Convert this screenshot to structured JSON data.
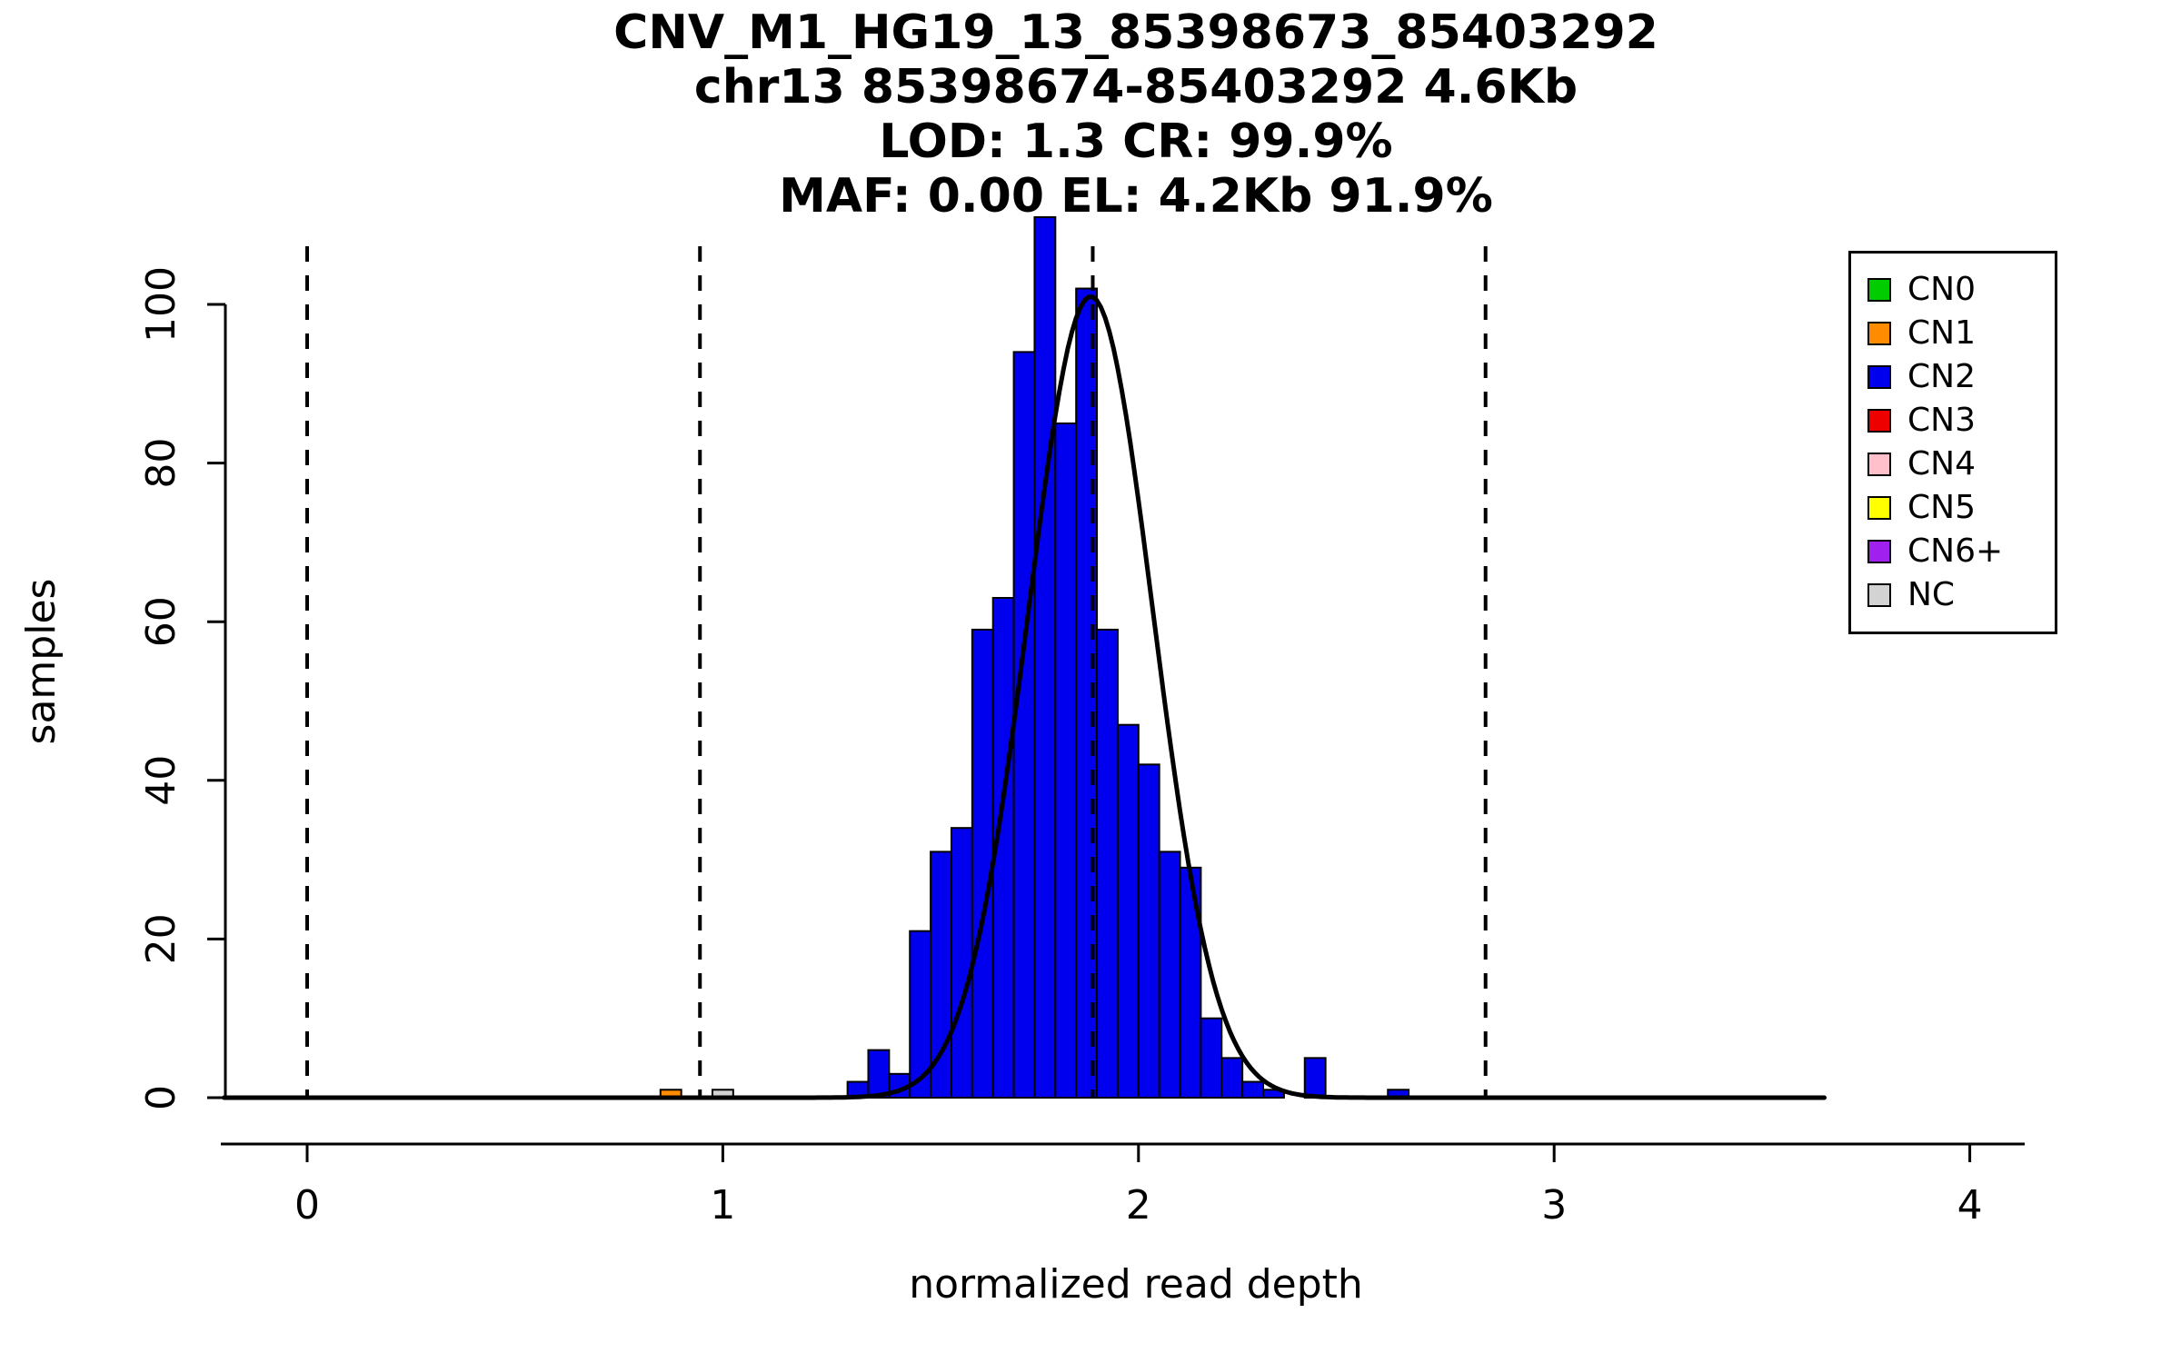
{
  "chart_data": {
    "type": "bar",
    "title_lines": [
      "CNV_M1_HG19_13_85398673_85403292",
      "chr13 85398674-85403292 4.6Kb",
      "LOD: 1.3 CR: 99.9%",
      "MAF: 0.00 EL: 4.2Kb 91.9%"
    ],
    "xlabel": "normalized read depth",
    "ylabel": "samples",
    "xlim": [
      -0.45,
      4.15
    ],
    "ylim": [
      0,
      110
    ],
    "x_ticks": [
      0,
      1,
      2,
      3,
      4
    ],
    "y_ticks": [
      0,
      20,
      40,
      60,
      80,
      100
    ],
    "grid": false,
    "bin_width": 0.05,
    "bars": {
      "CN1": {
        "color": "#FF8C00",
        "bins": [
          [
            0.85,
            1
          ]
        ]
      },
      "NC": {
        "color": "#D3D3D3",
        "bins": [
          [
            0.975,
            1
          ]
        ]
      },
      "CN2": {
        "color": "#0000EE",
        "bins": [
          [
            1.3,
            2
          ],
          [
            1.35,
            6
          ],
          [
            1.4,
            3
          ],
          [
            1.45,
            21
          ],
          [
            1.5,
            31
          ],
          [
            1.55,
            34
          ],
          [
            1.6,
            59
          ],
          [
            1.65,
            63
          ],
          [
            1.7,
            94
          ],
          [
            1.75,
            111
          ],
          [
            1.8,
            85
          ],
          [
            1.85,
            102
          ],
          [
            1.9,
            59
          ],
          [
            1.95,
            47
          ],
          [
            2.0,
            42
          ],
          [
            2.05,
            31
          ],
          [
            2.1,
            29
          ],
          [
            2.15,
            10
          ],
          [
            2.2,
            5
          ],
          [
            2.25,
            2
          ],
          [
            2.3,
            1
          ],
          [
            2.4,
            5
          ],
          [
            2.6,
            1
          ]
        ]
      }
    },
    "dashed_lines_x": [
      0,
      0.945,
      1.89,
      2.835
    ],
    "fit_curve": {
      "mean": 1.885,
      "sd": 0.15,
      "peak": 101,
      "x_range": [
        -0.2,
        3.65
      ]
    },
    "legend": {
      "position": "top-right",
      "items": [
        {
          "label": "CN0",
          "color": "#00CC00"
        },
        {
          "label": "CN1",
          "color": "#FF8C00"
        },
        {
          "label": "CN2",
          "color": "#0000EE"
        },
        {
          "label": "CN3",
          "color": "#EE0000"
        },
        {
          "label": "CN4",
          "color": "#FFC0CB"
        },
        {
          "label": "CN5",
          "color": "#FFFF00"
        },
        {
          "label": "CN6+",
          "color": "#A020F0"
        },
        {
          "label": "NC",
          "color": "#D3D3D3"
        }
      ]
    }
  }
}
